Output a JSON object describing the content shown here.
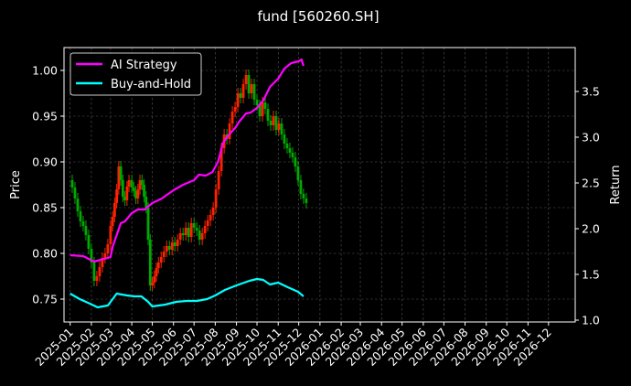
{
  "chart_data": {
    "type": "line",
    "title": "fund [560260.SH]",
    "ylabel_left": "Price",
    "ylabel_right": "Return",
    "ylim_left": [
      0.725,
      1.025
    ],
    "ylim_right": [
      0.98,
      3.98
    ],
    "x_range": [
      "2025-01-01",
      "2026-12-31"
    ],
    "x_tick_labels": [
      "2025-01",
      "2025-02",
      "2025-03",
      "2025-04",
      "2025-05",
      "2025-06",
      "2025-07",
      "2025-08",
      "2025-09",
      "2025-10",
      "2025-11",
      "2025-12",
      "2026-01",
      "2026-02",
      "2026-03",
      "2026-04",
      "2026-05",
      "2026-06",
      "2026-07",
      "2026-08",
      "2026-09",
      "2026-10",
      "2026-11",
      "2026-12"
    ],
    "y_ticks_left": [
      0.75,
      0.8,
      0.85,
      0.9,
      0.95,
      1.0
    ],
    "y_ticks_left_labels": [
      "0.75",
      "0.80",
      "0.85",
      "0.90",
      "0.95",
      "1.00"
    ],
    "y_ticks_right": [
      1.0,
      1.5,
      2.0,
      2.5,
      3.0,
      3.5
    ],
    "y_ticks_right_labels": [
      "1.0",
      "1.5",
      "2.0",
      "2.5",
      "3.0",
      "3.5"
    ],
    "grid": true,
    "legend_position": "top-left",
    "price_candles": {
      "axis": "left",
      "up_color": "#ff2200",
      "down_color": "#00aa00",
      "points": [
        [
          "2025-01-01",
          0.88
        ],
        [
          "2025-01-04",
          0.872
        ],
        [
          "2025-01-08",
          0.86
        ],
        [
          "2025-01-12",
          0.846
        ],
        [
          "2025-01-16",
          0.835
        ],
        [
          "2025-01-20",
          0.83
        ],
        [
          "2025-01-24",
          0.82
        ],
        [
          "2025-01-28",
          0.805
        ],
        [
          "2025-02-01",
          0.79
        ],
        [
          "2025-02-05",
          0.77
        ],
        [
          "2025-02-09",
          0.775
        ],
        [
          "2025-02-13",
          0.785
        ],
        [
          "2025-02-17",
          0.795
        ],
        [
          "2025-02-21",
          0.8
        ],
        [
          "2025-02-25",
          0.81
        ],
        [
          "2025-03-01",
          0.83
        ],
        [
          "2025-03-04",
          0.84
        ],
        [
          "2025-03-07",
          0.855
        ],
        [
          "2025-03-10",
          0.87
        ],
        [
          "2025-03-13",
          0.895
        ],
        [
          "2025-03-16",
          0.88
        ],
        [
          "2025-03-19",
          0.862
        ],
        [
          "2025-03-22",
          0.858
        ],
        [
          "2025-03-25",
          0.873
        ],
        [
          "2025-03-28",
          0.88
        ],
        [
          "2025-04-01",
          0.872
        ],
        [
          "2025-04-04",
          0.868
        ],
        [
          "2025-04-07",
          0.86
        ],
        [
          "2025-04-10",
          0.87
        ],
        [
          "2025-04-13",
          0.88
        ],
        [
          "2025-04-16",
          0.875
        ],
        [
          "2025-04-19",
          0.862
        ],
        [
          "2025-04-22",
          0.85
        ],
        [
          "2025-04-25",
          0.815
        ],
        [
          "2025-04-28",
          0.765
        ],
        [
          "2025-05-01",
          0.768
        ],
        [
          "2025-05-04",
          0.775
        ],
        [
          "2025-05-07",
          0.784
        ],
        [
          "2025-05-10",
          0.79
        ],
        [
          "2025-05-14",
          0.796
        ],
        [
          "2025-05-18",
          0.802
        ],
        [
          "2025-05-22",
          0.808
        ],
        [
          "2025-05-26",
          0.804
        ],
        [
          "2025-05-30",
          0.812
        ],
        [
          "2025-06-03",
          0.808
        ],
        [
          "2025-06-07",
          0.815
        ],
        [
          "2025-06-11",
          0.822
        ],
        [
          "2025-06-15",
          0.82
        ],
        [
          "2025-06-19",
          0.828
        ],
        [
          "2025-06-23",
          0.818
        ],
        [
          "2025-06-27",
          0.833
        ],
        [
          "2025-07-01",
          0.828
        ],
        [
          "2025-07-05",
          0.825
        ],
        [
          "2025-07-09",
          0.815
        ],
        [
          "2025-07-13",
          0.822
        ],
        [
          "2025-07-17",
          0.83
        ],
        [
          "2025-07-21",
          0.836
        ],
        [
          "2025-07-25",
          0.842
        ],
        [
          "2025-07-29",
          0.85
        ],
        [
          "2025-08-02",
          0.87
        ],
        [
          "2025-08-06",
          0.89
        ],
        [
          "2025-08-10",
          0.915
        ],
        [
          "2025-08-14",
          0.93
        ],
        [
          "2025-08-18",
          0.925
        ],
        [
          "2025-08-22",
          0.942
        ],
        [
          "2025-08-26",
          0.955
        ],
        [
          "2025-08-30",
          0.96
        ],
        [
          "2025-09-03",
          0.975
        ],
        [
          "2025-09-07",
          0.97
        ],
        [
          "2025-09-11",
          0.985
        ],
        [
          "2025-09-15",
          0.995
        ],
        [
          "2025-09-19",
          0.975
        ],
        [
          "2025-09-23",
          0.985
        ],
        [
          "2025-09-27",
          0.968
        ],
        [
          "2025-10-01",
          0.962
        ],
        [
          "2025-10-05",
          0.95
        ],
        [
          "2025-10-09",
          0.965
        ],
        [
          "2025-10-13",
          0.958
        ],
        [
          "2025-10-17",
          0.945
        ],
        [
          "2025-10-21",
          0.94
        ],
        [
          "2025-10-25",
          0.95
        ],
        [
          "2025-10-29",
          0.935
        ],
        [
          "2025-11-02",
          0.942
        ],
        [
          "2025-11-06",
          0.93
        ],
        [
          "2025-11-10",
          0.92
        ],
        [
          "2025-11-14",
          0.915
        ],
        [
          "2025-11-18",
          0.91
        ],
        [
          "2025-11-22",
          0.905
        ],
        [
          "2025-11-26",
          0.895
        ],
        [
          "2025-11-30",
          0.88
        ],
        [
          "2025-12-04",
          0.865
        ],
        [
          "2025-12-08",
          0.86
        ],
        [
          "2025-12-12",
          0.855
        ]
      ]
    },
    "series": [
      {
        "name": "AI Strategy",
        "axis": "right",
        "color": "#ff00ff",
        "points": [
          [
            "2025-01-01",
            1.71
          ],
          [
            "2025-01-20",
            1.7
          ],
          [
            "2025-02-05",
            1.64
          ],
          [
            "2025-02-20",
            1.67
          ],
          [
            "2025-03-01",
            1.69
          ],
          [
            "2025-03-04",
            1.8
          ],
          [
            "2025-03-10",
            1.93
          ],
          [
            "2025-03-16",
            2.06
          ],
          [
            "2025-03-22",
            2.08
          ],
          [
            "2025-04-01",
            2.17
          ],
          [
            "2025-04-10",
            2.21
          ],
          [
            "2025-04-20",
            2.21
          ],
          [
            "2025-05-01",
            2.28
          ],
          [
            "2025-05-15",
            2.33
          ],
          [
            "2025-06-01",
            2.42
          ],
          [
            "2025-06-15",
            2.48
          ],
          [
            "2025-07-01",
            2.53
          ],
          [
            "2025-07-08",
            2.59
          ],
          [
            "2025-07-18",
            2.58
          ],
          [
            "2025-07-28",
            2.62
          ],
          [
            "2025-08-05",
            2.73
          ],
          [
            "2025-08-12",
            2.93
          ],
          [
            "2025-08-20",
            3.02
          ],
          [
            "2025-08-30",
            3.1
          ],
          [
            "2025-09-05",
            3.17
          ],
          [
            "2025-09-15",
            3.26
          ],
          [
            "2025-09-22",
            3.27
          ],
          [
            "2025-10-01",
            3.32
          ],
          [
            "2025-10-10",
            3.4
          ],
          [
            "2025-10-20",
            3.55
          ],
          [
            "2025-11-01",
            3.64
          ],
          [
            "2025-11-10",
            3.75
          ],
          [
            "2025-11-20",
            3.81
          ],
          [
            "2025-12-01",
            3.83
          ],
          [
            "2025-12-05",
            3.85
          ],
          [
            "2025-12-08",
            3.78
          ]
        ]
      },
      {
        "name": "Buy-and-Hold",
        "axis": "right",
        "color": "#00ffff",
        "points": [
          [
            "2025-01-01",
            1.29
          ],
          [
            "2025-01-15",
            1.23
          ],
          [
            "2025-01-30",
            1.18
          ],
          [
            "2025-02-10",
            1.14
          ],
          [
            "2025-02-25",
            1.16
          ],
          [
            "2025-03-05",
            1.24
          ],
          [
            "2025-03-10",
            1.29
          ],
          [
            "2025-03-25",
            1.27
          ],
          [
            "2025-04-05",
            1.26
          ],
          [
            "2025-04-15",
            1.26
          ],
          [
            "2025-04-25",
            1.2
          ],
          [
            "2025-05-01",
            1.15
          ],
          [
            "2025-05-20",
            1.17
          ],
          [
            "2025-06-05",
            1.2
          ],
          [
            "2025-06-20",
            1.21
          ],
          [
            "2025-07-05",
            1.21
          ],
          [
            "2025-07-20",
            1.23
          ],
          [
            "2025-08-01",
            1.27
          ],
          [
            "2025-08-15",
            1.33
          ],
          [
            "2025-09-01",
            1.38
          ],
          [
            "2025-09-20",
            1.43
          ],
          [
            "2025-10-01",
            1.45
          ],
          [
            "2025-10-10",
            1.44
          ],
          [
            "2025-10-20",
            1.39
          ],
          [
            "2025-11-01",
            1.41
          ],
          [
            "2025-11-15",
            1.36
          ],
          [
            "2025-11-30",
            1.31
          ],
          [
            "2025-12-08",
            1.26
          ]
        ]
      }
    ]
  }
}
